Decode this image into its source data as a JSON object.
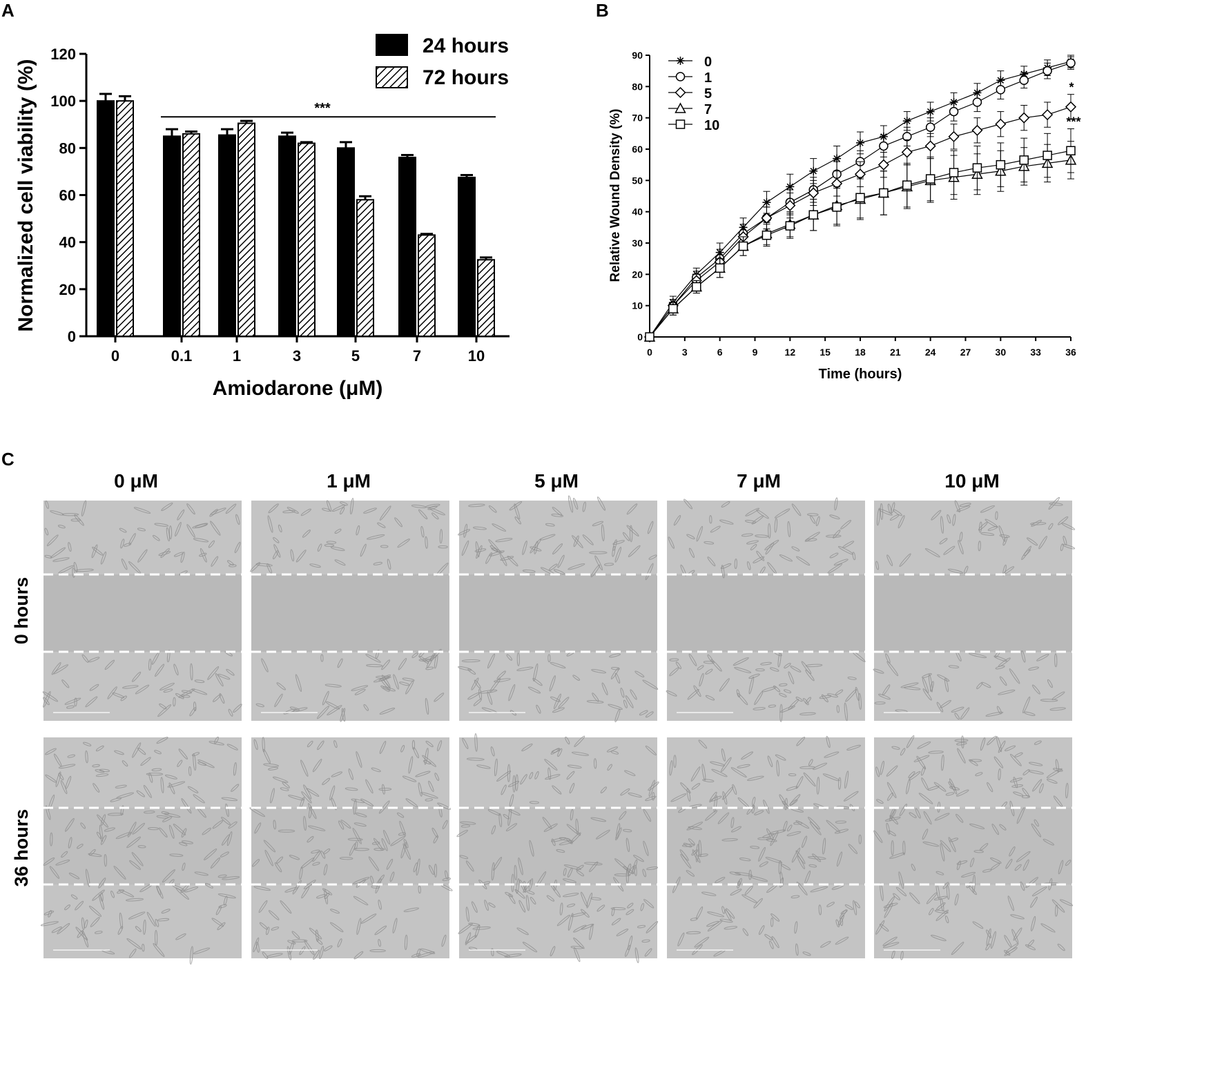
{
  "panels": {
    "a": "A",
    "b": "B",
    "c": "C"
  },
  "chart_data": [
    {
      "type": "bar",
      "panel": "A",
      "title": "",
      "xlabel": "Amiodarone (μM)",
      "ylabel": "Normalized cell viability (%)",
      "ylim": [
        0,
        120
      ],
      "yticks": [
        0,
        20,
        40,
        60,
        80,
        100,
        120
      ],
      "categories": [
        "0",
        "0.1",
        "1",
        "3",
        "5",
        "7",
        "10"
      ],
      "series": [
        {
          "name": "24 hours",
          "fill": "solid",
          "values": [
            100,
            85,
            85.5,
            85,
            80,
            76,
            67.5
          ],
          "errors": [
            3,
            3,
            2.5,
            1.5,
            2.5,
            1,
            1
          ]
        },
        {
          "name": "72 hours",
          "fill": "hatched",
          "values": [
            100,
            86,
            90.5,
            82,
            58,
            43,
            32.5
          ],
          "errors": [
            2,
            1,
            1,
            0.5,
            1.5,
            0.5,
            1
          ]
        }
      ],
      "annotations": [
        {
          "text": "***",
          "from_category": "0.1",
          "to_category": "10",
          "y": 95
        }
      ],
      "legend_position": "top-right",
      "grid": false
    },
    {
      "type": "line",
      "panel": "B",
      "title": "",
      "xlabel": "Time (hours)",
      "ylabel": "Relative Wound Density (%)",
      "xlim": [
        0,
        36
      ],
      "ylim": [
        0,
        90
      ],
      "xticks": [
        0,
        3,
        6,
        9,
        12,
        15,
        18,
        21,
        24,
        27,
        30,
        33,
        36
      ],
      "yticks": [
        0,
        10,
        20,
        30,
        40,
        50,
        60,
        70,
        80,
        90
      ],
      "x": [
        0,
        2,
        4,
        6,
        8,
        10,
        12,
        14,
        16,
        18,
        20,
        22,
        24,
        26,
        28,
        30,
        32,
        34,
        36
      ],
      "series": [
        {
          "name": "0",
          "marker": "asterisk",
          "values": [
            0,
            11,
            20,
            27,
            35,
            43,
            48,
            53,
            57,
            62,
            64,
            69,
            72,
            75,
            78,
            82,
            84,
            86,
            88
          ],
          "errors": [
            1,
            2,
            2,
            3,
            3,
            3.5,
            4,
            4,
            4,
            3.5,
            3.5,
            3,
            3,
            3,
            3,
            3,
            2.5,
            2.5,
            2
          ]
        },
        {
          "name": "1",
          "marker": "circle",
          "values": [
            0,
            10,
            19,
            25,
            33,
            38,
            43,
            47,
            52,
            56,
            61,
            64,
            67,
            72,
            75,
            79,
            82,
            85,
            87.5
          ],
          "errors": [
            1,
            2,
            2,
            3,
            3,
            3.5,
            4,
            4,
            4,
            3.5,
            3.5,
            3,
            3,
            3,
            3,
            3,
            2.5,
            2.5,
            2
          ]
        },
        {
          "name": "5",
          "marker": "diamond",
          "values": [
            0,
            10,
            18,
            24,
            32,
            38,
            42,
            46,
            49,
            52,
            55,
            59,
            61,
            64,
            66,
            68,
            70,
            71,
            73.5
          ],
          "errors": [
            1,
            2,
            2,
            3,
            3,
            3.5,
            4,
            4,
            4,
            4,
            4,
            4,
            4,
            4,
            4,
            4,
            4,
            4,
            4
          ]
        },
        {
          "name": "7",
          "marker": "triangle",
          "values": [
            0,
            9,
            16,
            22,
            29,
            33,
            36,
            39,
            42,
            44,
            46,
            48,
            50,
            51,
            52,
            53,
            54.5,
            55.5,
            56.5
          ],
          "errors": [
            1,
            2,
            2,
            3,
            3,
            3.5,
            4,
            5,
            6,
            6.5,
            7,
            7,
            7,
            7,
            6.5,
            6.5,
            6,
            6,
            6
          ]
        },
        {
          "name": "10",
          "marker": "square",
          "values": [
            0,
            9,
            16,
            22,
            29,
            32.5,
            35.5,
            39,
            41.5,
            44.5,
            46,
            48.5,
            50.5,
            52.5,
            54,
            55,
            56.5,
            58,
            59.5
          ],
          "errors": [
            1,
            2,
            2,
            3,
            3,
            3.5,
            4,
            5,
            6,
            6.5,
            7,
            7,
            7,
            7,
            7,
            7,
            7,
            7,
            7
          ]
        }
      ],
      "significance": [
        {
          "series": "5",
          "text": "*"
        },
        {
          "series": "10",
          "text": "***"
        }
      ],
      "legend_position": "top-left",
      "grid": false
    }
  ],
  "micrographs": {
    "columns": [
      "0 μM",
      "1 μM",
      "5 μM",
      "7 μM",
      "10 μM"
    ],
    "rows": [
      "0 hours",
      "36 hours"
    ],
    "description_colors": {
      "background": "#c4c4c4",
      "wound": "#b9b9b9",
      "dash": "#ffffff",
      "cell": "#8d8d8d"
    }
  },
  "colors": {
    "axis": "#000000",
    "bar_solid": "#000000",
    "bar_hatch": "#000000"
  }
}
